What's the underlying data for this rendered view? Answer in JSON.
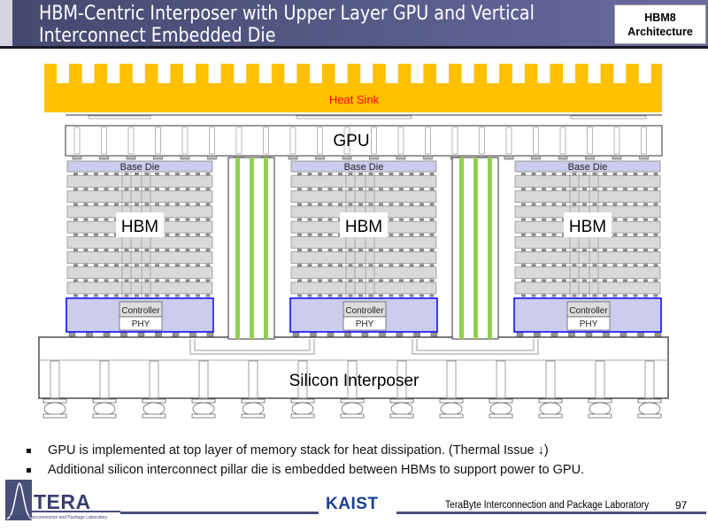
{
  "header": {
    "title_line1": "HBM-Centric Interposer with Upper Layer GPU and Vertical",
    "title_line2": "Interconnect Embedded Die",
    "badge_line1": "HBM8",
    "badge_line2": "Architecture"
  },
  "diagram": {
    "heat_sink": "Heat Sink",
    "gpu": "GPU",
    "interposer": "Silicon Interposer",
    "stacks": [
      {
        "base_die": "Base Die",
        "hbm": "HBM",
        "controller": "Controller",
        "phy": "PHY"
      },
      {
        "base_die": "Base Die",
        "hbm": "HBM",
        "controller": "Controller",
        "phy": "PHY"
      },
      {
        "base_die": "Base Die",
        "hbm": "HBM",
        "controller": "Controller",
        "phy": "PHY"
      }
    ],
    "colors": {
      "heat_sink": "#ffc000",
      "heat_sink_label": "#ff0000",
      "base_die": "#ccccee",
      "dram_layer": "#d9d9d9",
      "controller_border": "#0000ff",
      "pillar_stripe": "#92d050"
    }
  },
  "bullets": [
    "GPU is implemented at top layer of memory stack for heat dissipation. (Thermal Issue ↓)",
    "Additional silicon interconnect pillar die is embedded between HBMs to support power to GPU."
  ],
  "footer": {
    "logo_text": "TERA",
    "logo_subtext": "TeraByte Interconnection and Package Laboratory",
    "kaist": "KAIST",
    "lab": "TeraByte Interconnection and Package Laboratory",
    "page": "97"
  }
}
